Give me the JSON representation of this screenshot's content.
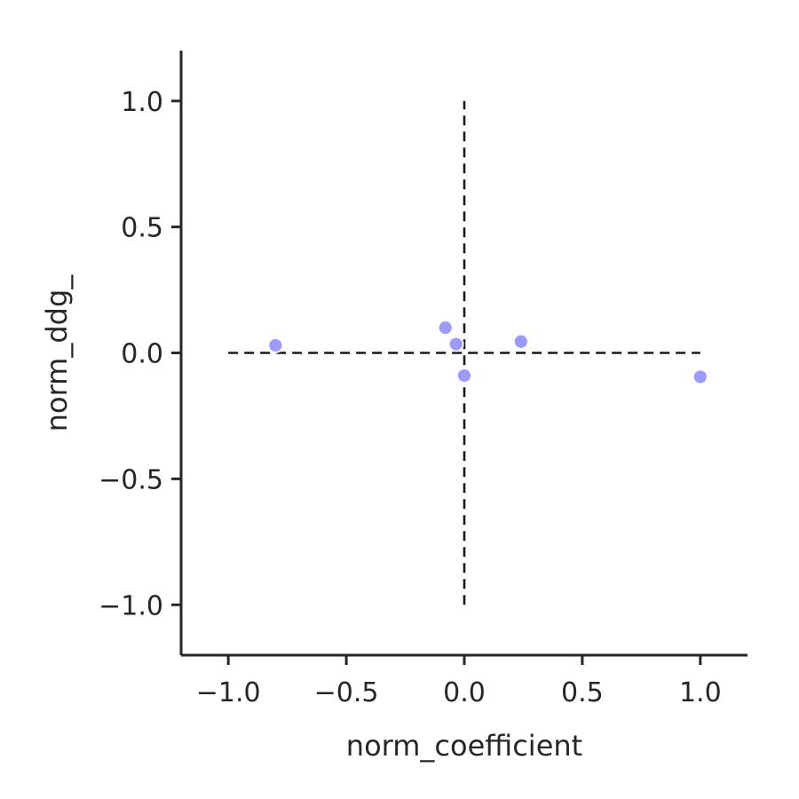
{
  "chart_data": {
    "type": "scatter",
    "title": "",
    "xlabel": "norm_coefficient",
    "ylabel": "norm_ddg_",
    "xlim": [
      -1.2,
      1.2
    ],
    "ylim": [
      -1.2,
      1.2
    ],
    "grid": false,
    "xticks": [
      -1.0,
      -0.5,
      0.0,
      0.5,
      1.0
    ],
    "yticks": [
      -1.0,
      -0.5,
      0.0,
      0.5,
      1.0
    ],
    "xtick_labels": [
      "−1.0",
      "−0.5",
      "0.0",
      "0.5",
      "1.0"
    ],
    "ytick_labels": [
      "−1.0",
      "−0.5",
      "0.0",
      "0.5",
      "1.0"
    ],
    "point_color": "#9b9bff",
    "reference_lines": [
      {
        "orientation": "horizontal",
        "y": 0.0,
        "x_from": -1.0,
        "x_to": 1.0,
        "style": "dashed",
        "color": "#1a1a1a"
      },
      {
        "orientation": "vertical",
        "x": 0.0,
        "y_from": -1.0,
        "y_to": 1.0,
        "style": "dashed",
        "color": "#1a1a1a"
      }
    ],
    "points": [
      {
        "x": -0.8,
        "y": 0.03
      },
      {
        "x": -0.08,
        "y": 0.1
      },
      {
        "x": -0.035,
        "y": 0.035
      },
      {
        "x": 0.0,
        "y": -0.09
      },
      {
        "x": 0.24,
        "y": 0.045
      },
      {
        "x": 1.0,
        "y": -0.095
      }
    ]
  }
}
